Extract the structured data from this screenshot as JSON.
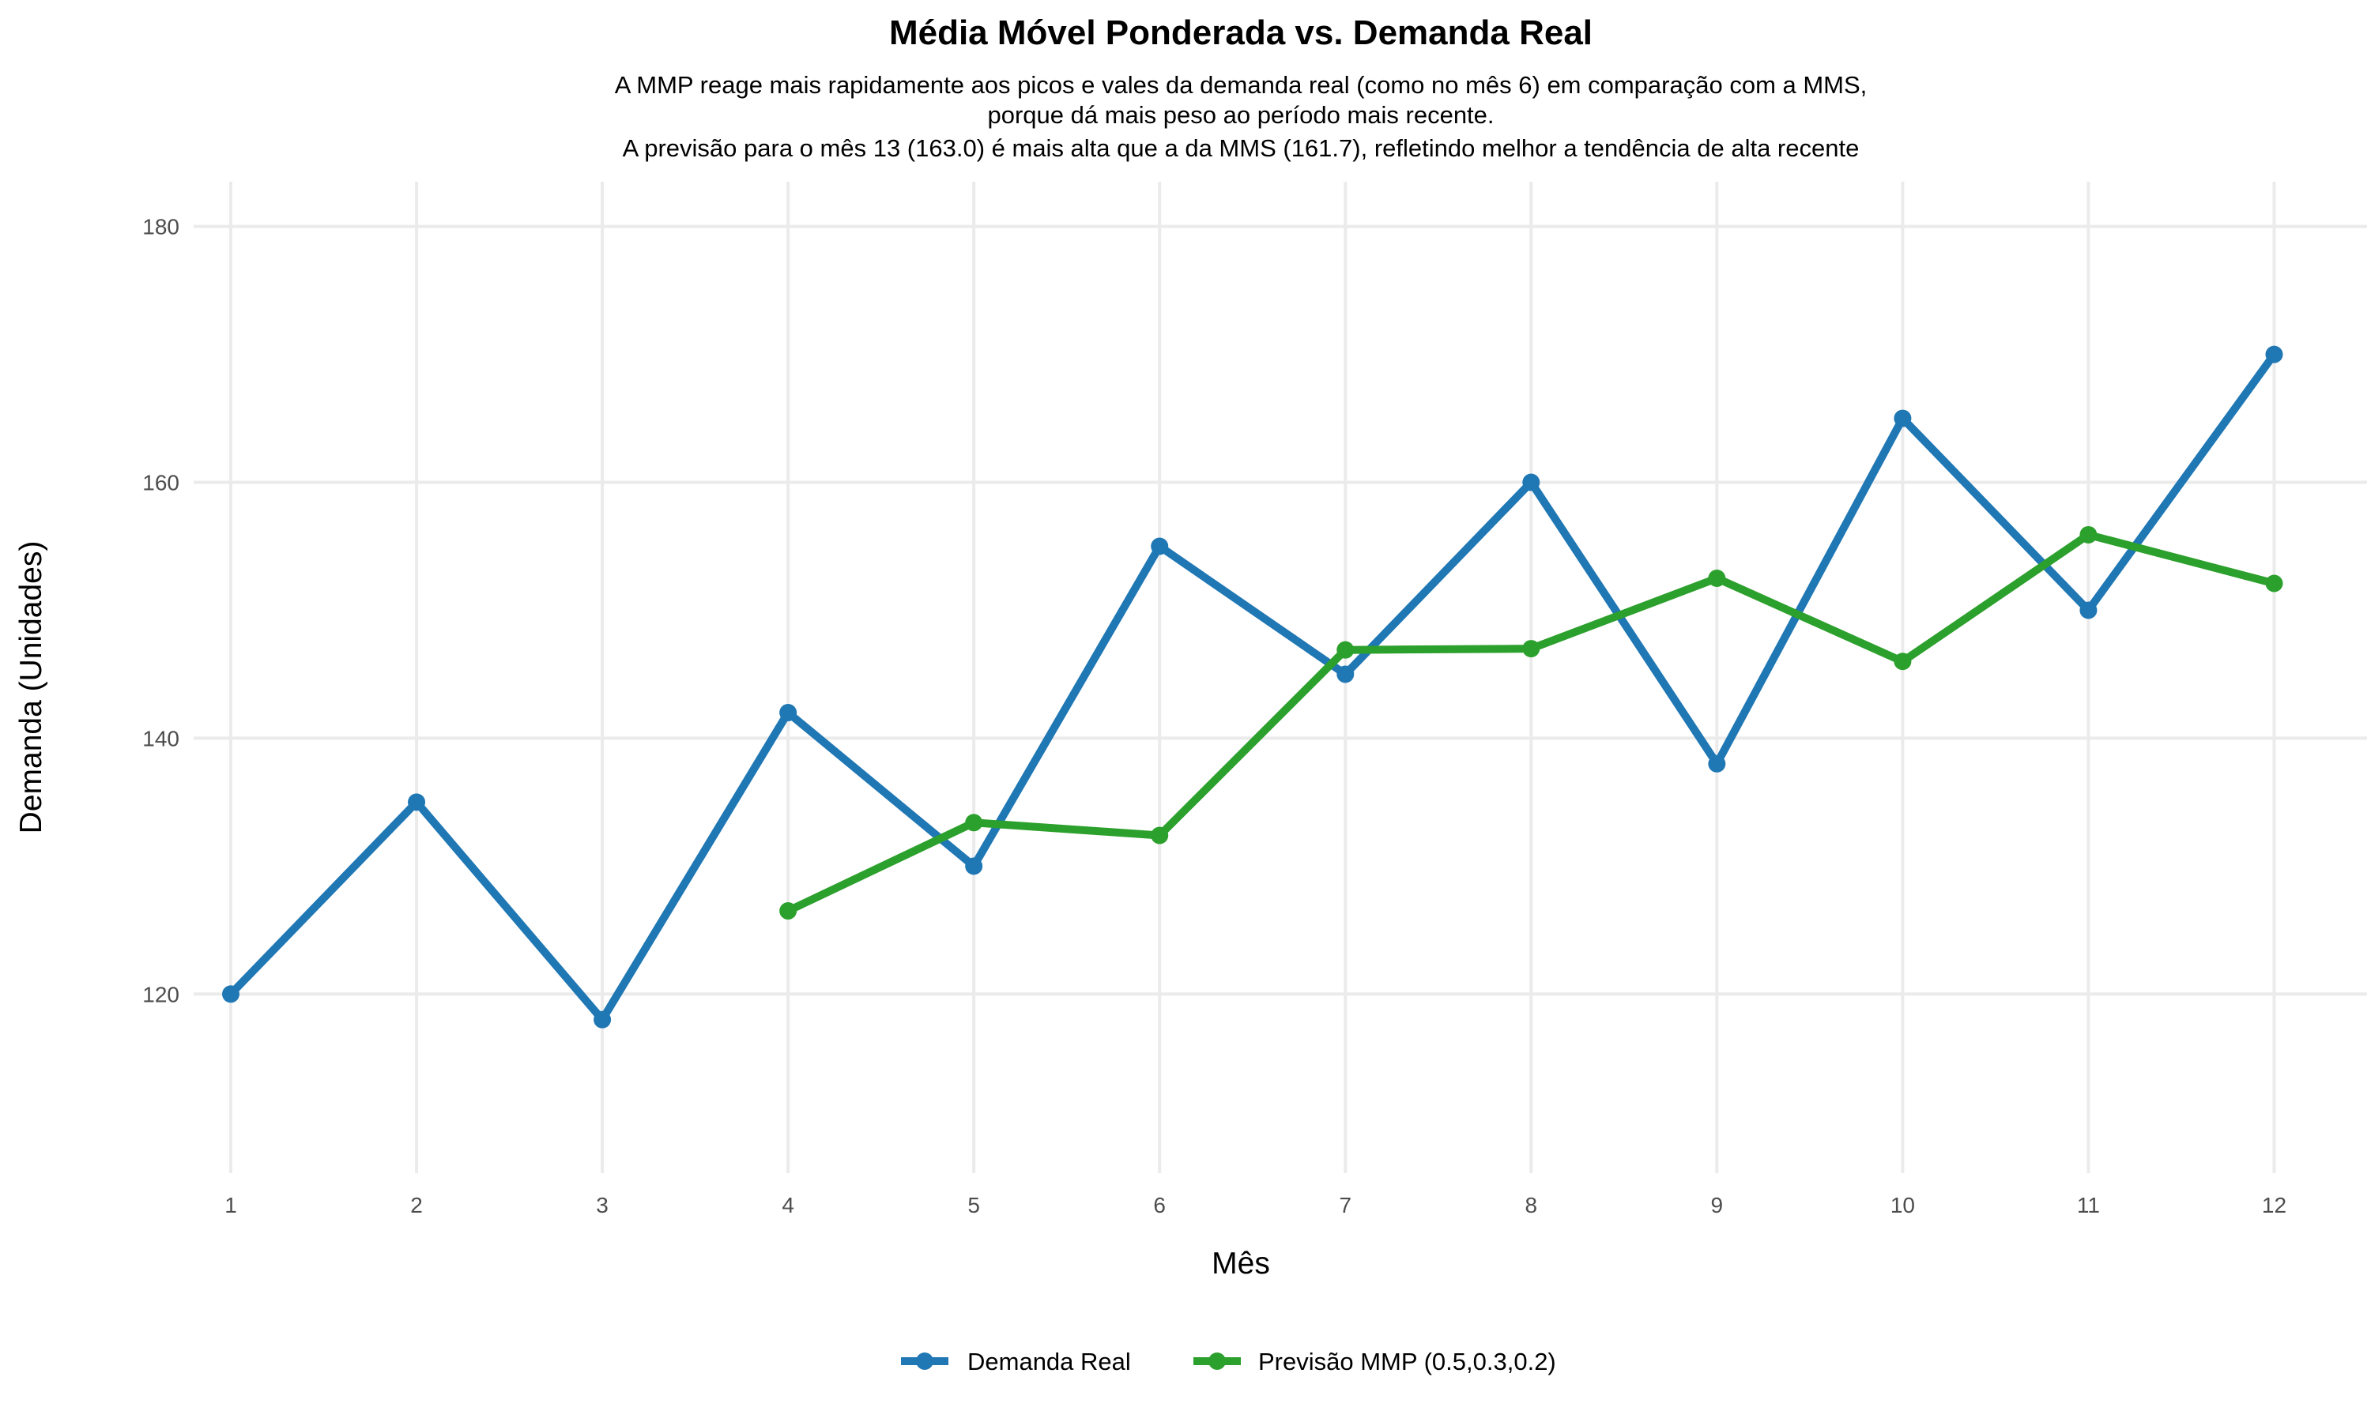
{
  "chart_data": {
    "type": "line",
    "title": "Média Móvel Ponderada vs. Demanda Real",
    "subtitle": [
      "A MMP reage mais rapidamente aos picos e vales da demanda real (como no mês 6) em comparação com a MMS,",
      "porque dá mais peso ao período mais recente.",
      "A previsão para o mês 13 (163.0) é mais alta que a da MMS (161.7), refletindo melhor a tendência de alta recente"
    ],
    "xlabel": "Mês",
    "ylabel": "Demanda (Unidades)",
    "x_ticks": [
      1,
      2,
      3,
      4,
      5,
      6,
      7,
      8,
      9,
      10,
      11,
      12
    ],
    "y_ticks": [
      120,
      140,
      160,
      180
    ],
    "xlim": [
      0.8,
      12.5
    ],
    "ylim": [
      106,
      183.5
    ],
    "grid": true,
    "legend_position": "bottom",
    "series": [
      {
        "name": "Demanda Real",
        "color": "#1f77b4",
        "x": [
          1,
          2,
          3,
          4,
          5,
          6,
          7,
          8,
          9,
          10,
          11,
          12
        ],
        "y": [
          120,
          135,
          118,
          142,
          130,
          155,
          145,
          160,
          138,
          165,
          150,
          170
        ]
      },
      {
        "name": "Previsão MMP (0.5,0.3,0.2)",
        "color": "#2ca02c",
        "x": [
          4,
          5,
          6,
          7,
          8,
          9,
          10,
          11,
          12
        ],
        "y": [
          126.5,
          133.4,
          132.4,
          146.9,
          147.0,
          152.5,
          146.0,
          155.9,
          152.1
        ]
      }
    ]
  }
}
